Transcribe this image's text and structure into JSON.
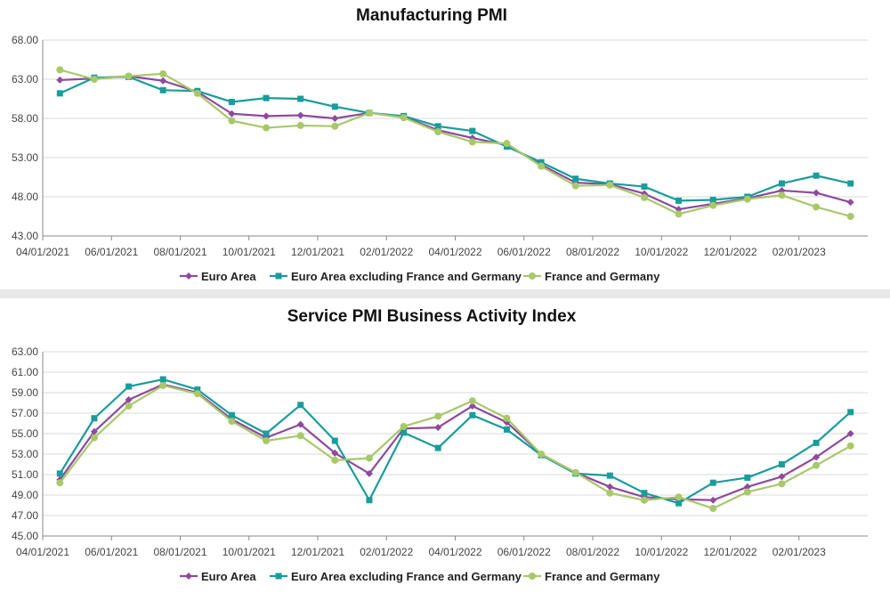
{
  "chart_data": [
    {
      "type": "line",
      "title": "Manufacturing PMI",
      "xlabel": "",
      "ylabel": "",
      "ylim": [
        43,
        68
      ],
      "yticks": [
        "43.00",
        "48.00",
        "53.00",
        "58.00",
        "63.00",
        "68.00"
      ],
      "xticks": [
        "04/01/2021",
        "06/01/2021",
        "08/01/2021",
        "10/01/2021",
        "12/01/2021",
        "02/01/2022",
        "04/01/2022",
        "06/01/2022",
        "08/01/2022",
        "10/01/2022",
        "12/01/2022",
        "02/01/2023"
      ],
      "x": [
        "04/2021",
        "05/2021",
        "06/2021",
        "07/2021",
        "08/2021",
        "09/2021",
        "10/2021",
        "11/2021",
        "12/2021",
        "01/2022",
        "02/2022",
        "03/2022",
        "04/2022",
        "05/2022",
        "06/2022",
        "07/2022",
        "08/2022",
        "09/2022",
        "10/2022",
        "11/2022",
        "12/2022",
        "01/2023",
        "02/2023",
        "03/2023"
      ],
      "grid": true,
      "legend": "bottom",
      "series": [
        {
          "name": "Euro Area",
          "color": "#8e4a9e",
          "marker": "diamond",
          "values": [
            62.9,
            63.1,
            63.4,
            62.8,
            61.4,
            58.6,
            58.3,
            58.4,
            58.0,
            58.7,
            58.2,
            56.5,
            55.5,
            54.6,
            52.1,
            49.8,
            49.6,
            48.4,
            46.4,
            47.1,
            47.8,
            48.8,
            48.5,
            47.3
          ]
        },
        {
          "name": "Euro Area excluding France and Germany",
          "color": "#1a9c9c",
          "marker": "square",
          "values": [
            61.2,
            63.2,
            63.3,
            61.6,
            61.5,
            60.1,
            60.6,
            60.5,
            59.5,
            58.7,
            58.3,
            57.0,
            56.4,
            54.4,
            52.4,
            50.3,
            49.7,
            49.3,
            47.5,
            47.6,
            48.0,
            49.7,
            50.7,
            49.7
          ]
        },
        {
          "name": "France and Germany",
          "color": "#a8c86a",
          "marker": "circle",
          "values": [
            64.2,
            63.0,
            63.4,
            63.7,
            61.2,
            57.7,
            56.8,
            57.1,
            57.0,
            58.7,
            58.1,
            56.3,
            55.0,
            54.8,
            51.9,
            49.4,
            49.5,
            47.9,
            45.8,
            46.9,
            47.7,
            48.2,
            46.7,
            45.5
          ]
        }
      ]
    },
    {
      "type": "line",
      "title": "Service PMI Business Activity Index",
      "xlabel": "",
      "ylabel": "",
      "ylim": [
        45,
        63
      ],
      "yticks": [
        "45.00",
        "47.00",
        "49.00",
        "51.00",
        "53.00",
        "55.00",
        "57.00",
        "59.00",
        "61.00",
        "63.00"
      ],
      "xticks": [
        "04/01/2021",
        "06/01/2021",
        "08/01/2021",
        "10/01/2021",
        "12/01/2021",
        "02/01/2022",
        "04/01/2022",
        "06/01/2022",
        "08/01/2022",
        "10/01/2022",
        "12/01/2022",
        "02/01/2023"
      ],
      "x": [
        "04/2021",
        "05/2021",
        "06/2021",
        "07/2021",
        "08/2021",
        "09/2021",
        "10/2021",
        "11/2021",
        "12/2021",
        "01/2022",
        "02/2022",
        "03/2022",
        "04/2022",
        "05/2022",
        "06/2022",
        "07/2022",
        "08/2022",
        "09/2022",
        "10/2022",
        "11/2022",
        "12/2022",
        "01/2023",
        "02/2023",
        "03/2023"
      ],
      "grid": true,
      "legend": "bottom",
      "series": [
        {
          "name": "Euro Area",
          "color": "#8e4a9e",
          "marker": "diamond",
          "values": [
            50.5,
            55.2,
            58.3,
            59.8,
            59.0,
            56.4,
            54.6,
            55.9,
            53.1,
            51.1,
            55.5,
            55.6,
            57.7,
            56.1,
            53.0,
            51.2,
            49.8,
            48.8,
            48.6,
            48.5,
            49.8,
            50.8,
            52.7,
            55.0
          ]
        },
        {
          "name": "Euro Area excluding France and Germany",
          "color": "#1a9c9c",
          "marker": "square",
          "values": [
            51.1,
            56.5,
            59.6,
            60.3,
            59.3,
            56.8,
            55.0,
            57.8,
            54.3,
            48.5,
            55.1,
            53.6,
            56.8,
            55.4,
            52.9,
            51.1,
            50.9,
            49.2,
            48.2,
            50.2,
            50.7,
            52.0,
            54.1,
            57.1
          ]
        },
        {
          "name": "France and Germany",
          "color": "#a8c86a",
          "marker": "circle",
          "values": [
            50.2,
            54.6,
            57.7,
            59.7,
            58.9,
            56.2,
            54.3,
            54.8,
            52.4,
            52.6,
            55.7,
            56.7,
            58.2,
            56.5,
            53.0,
            51.2,
            49.2,
            48.5,
            48.8,
            47.7,
            49.3,
            50.1,
            51.9,
            53.8
          ]
        }
      ]
    }
  ]
}
